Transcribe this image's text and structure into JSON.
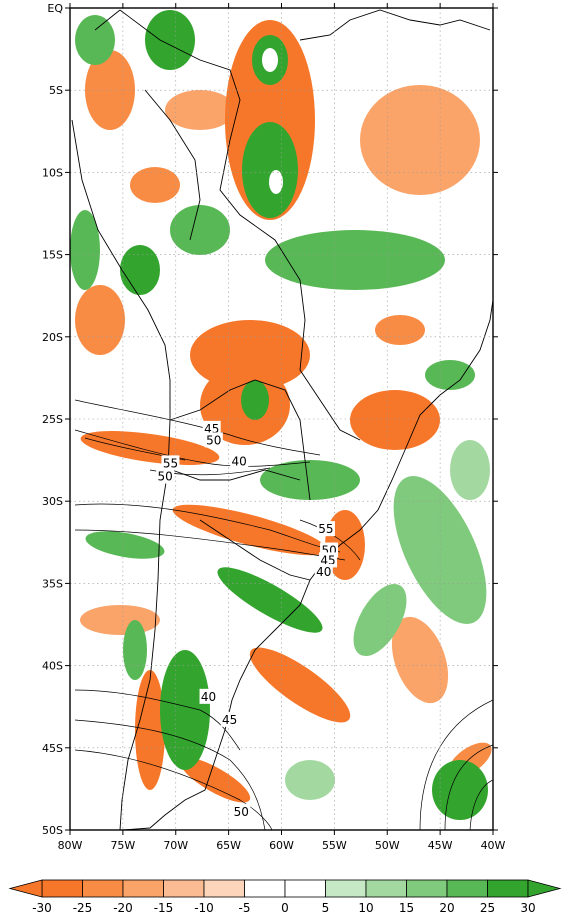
{
  "map": {
    "lat_labels": [
      "EQ",
      "5S",
      "10S",
      "15S",
      "20S",
      "25S",
      "30S",
      "35S",
      "40S",
      "45S",
      "50S"
    ],
    "lon_labels": [
      "80W",
      "75W",
      "70W",
      "65W",
      "60W",
      "55W",
      "50W",
      "45W",
      "40W"
    ],
    "lat_range": [
      -50,
      0
    ],
    "lon_range": [
      -80,
      -40
    ],
    "gridlines": "dotted",
    "contour_labels": [
      {
        "text": "45",
        "lon": -66.6,
        "lat": -25.6
      },
      {
        "text": "50",
        "lon": -66.4,
        "lat": -26.3
      },
      {
        "text": "55",
        "lon": -70.5,
        "lat": -27.7
      },
      {
        "text": "40",
        "lon": -64.0,
        "lat": -27.6
      },
      {
        "text": "50",
        "lon": -71.0,
        "lat": -28.5
      },
      {
        "text": "55",
        "lon": -55.8,
        "lat": -31.7
      },
      {
        "text": "50",
        "lon": -55.5,
        "lat": -33.0
      },
      {
        "text": "45",
        "lon": -55.6,
        "lat": -33.6
      },
      {
        "text": "40",
        "lon": -56.0,
        "lat": -34.3
      },
      {
        "text": "40",
        "lon": -66.9,
        "lat": -41.9
      },
      {
        "text": "45",
        "lon": -64.9,
        "lat": -43.3
      },
      {
        "text": "50",
        "lon": -63.8,
        "lat": -48.9
      }
    ]
  },
  "colorbar": {
    "tick_labels": [
      "-30",
      "-25",
      "-20",
      "-15",
      "-10",
      "-5",
      "0",
      "5",
      "10",
      "15",
      "20",
      "25",
      "30"
    ],
    "colors": [
      "#f7772a",
      "#f98c45",
      "#fba46a",
      "#fcbc93",
      "#fdd5ba",
      "#ffffff",
      "#ffffff",
      "#c6e8c4",
      "#a3d9a1",
      "#7fca7c",
      "#59b856",
      "#33a52f"
    ]
  },
  "colors": {
    "negative_strong": "#f7772a",
    "negative_light": "#fcbc93",
    "positive_light": "#a3d9a1",
    "positive_strong": "#33a52f",
    "line": "#000000"
  }
}
